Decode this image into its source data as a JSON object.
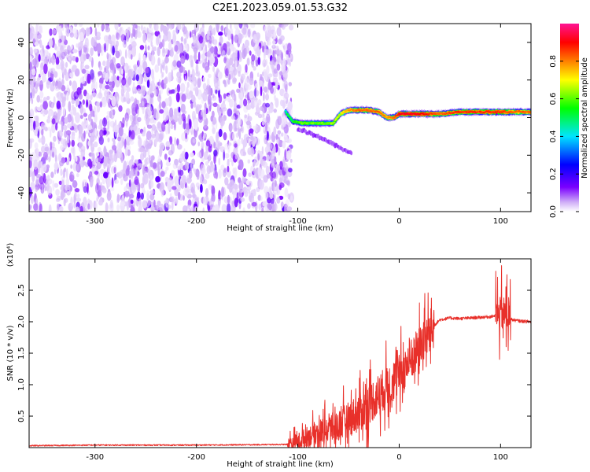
{
  "title": "C2E1.2023.059.01.53.G32",
  "colors": {
    "snr_line": "#e8302a",
    "background": "#ffffff",
    "axis": "#000000"
  },
  "chart_data": [
    {
      "type": "heatmap",
      "name": "spectrogram",
      "xlabel": "Height of straight line (km)",
      "ylabel": "Frequency (Hz)",
      "xlim": [
        -365,
        130
      ],
      "ylim": [
        -50,
        50
      ],
      "xticks": [
        -300,
        -200,
        -100,
        0,
        100
      ],
      "yticks": [
        -40,
        -20,
        0,
        20,
        40
      ],
      "colorbar": {
        "label": "Normalized spectral amplitude",
        "range": [
          0,
          1
        ],
        "ticks": [
          "0.0",
          "0.2",
          "0.4",
          "0.6",
          "0.8"
        ],
        "colormap": [
          "#ffffff",
          "#cfaef7",
          "#7a00ff",
          "#0000ff",
          "#00e5ff",
          "#00ff00",
          "#ffff00",
          "#ff8000",
          "#ff0000",
          "#ff1493"
        ]
      },
      "noise_region": {
        "x": [
          -365,
          -110
        ],
        "freq": [
          -50,
          50
        ],
        "amplitude": "0.05-0.35"
      },
      "signal_trace": {
        "x": [
          -112,
          -105,
          -95,
          -85,
          -75,
          -65,
          -58,
          -50,
          -40,
          -30,
          -20,
          -12,
          -5,
          0,
          20,
          40,
          60,
          80,
          100,
          110,
          130
        ],
        "freq": [
          3,
          -2,
          -3,
          -3,
          -3,
          -3,
          2,
          4,
          4,
          4,
          3,
          0,
          0,
          2,
          2,
          2,
          3,
          3,
          3,
          3,
          3
        ],
        "peak_amplitude": [
          0.5,
          0.55,
          0.6,
          0.6,
          0.6,
          0.62,
          0.65,
          0.75,
          0.8,
          0.8,
          0.8,
          0.75,
          0.8,
          0.9,
          0.9,
          0.8,
          0.85,
          0.85,
          0.85,
          0.8,
          0.8
        ]
      },
      "side_branch": {
        "x": [
          -100,
          -80,
          -65,
          -55,
          -47
        ],
        "freq": [
          -6,
          -10,
          -14,
          -17,
          -19
        ]
      }
    },
    {
      "type": "line",
      "name": "snr",
      "xlabel": "Height of straight line (km)",
      "ylabel": "SNR (10 * v/v)",
      "multiplier": "(x10⁴)",
      "xlim": [
        -365,
        130
      ],
      "ylim": [
        0,
        3.0
      ],
      "xticks": [
        -300,
        -200,
        -100,
        0,
        100
      ],
      "yticks": [
        "0.5",
        "1.0",
        "1.5",
        "2.0",
        "2.5"
      ],
      "series": [
        {
          "x": [
            -365,
            -300,
            -200,
            -110,
            -100,
            -90,
            -80,
            -70,
            -60,
            -50,
            -40,
            -30,
            -20,
            -10,
            0,
            10,
            20,
            30,
            35,
            40,
            50,
            60,
            70,
            80,
            90,
            95,
            100,
            103,
            106,
            108,
            110,
            115,
            120,
            130
          ],
          "values": [
            0.03,
            0.04,
            0.04,
            0.05,
            0.1,
            0.18,
            0.25,
            0.3,
            0.35,
            0.45,
            0.55,
            0.7,
            0.85,
            1.0,
            1.15,
            1.35,
            1.6,
            1.85,
            1.95,
            2.03,
            2.06,
            2.05,
            2.06,
            2.07,
            2.08,
            2.1,
            2.12,
            2.13,
            2.1,
            2.08,
            2.04,
            2.02,
            2.01,
            2.0
          ]
        }
      ]
    }
  ]
}
